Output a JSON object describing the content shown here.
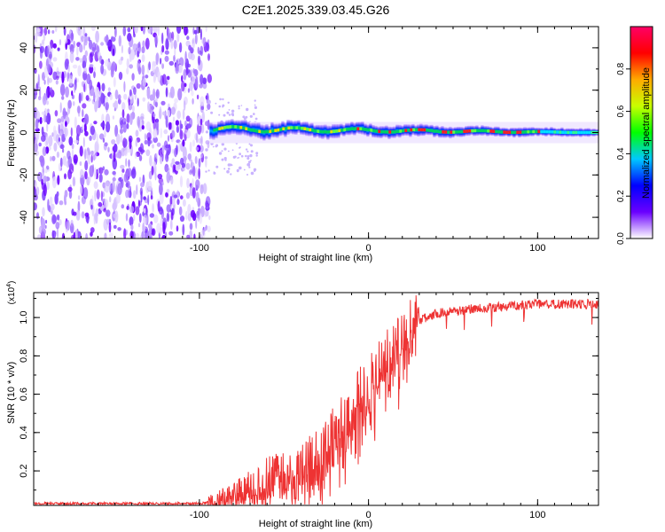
{
  "title": "C2E1.2025.339.03.45.G26",
  "chart_data": [
    {
      "type": "heatmap",
      "name": "spectrogram",
      "xlabel": "Height of straight line (km)",
      "ylabel": "Frequency (Hz)",
      "xlim": [
        -198,
        136
      ],
      "ylim": [
        -50,
        50
      ],
      "xticks": [
        -100,
        0,
        100
      ],
      "xtick_labels": [
        "-100",
        "0",
        "100"
      ],
      "yticks": [
        -40,
        -20,
        0,
        20,
        40
      ],
      "ytick_labels": [
        "-40",
        "-20",
        "0",
        "20",
        "40"
      ],
      "noise_region_x": [
        -198,
        -94
      ],
      "signal_line_hz": 0,
      "colorbar": {
        "label": "Normalized spectral amplitude",
        "range": [
          0,
          1
        ],
        "ticks": [
          0,
          0.2,
          0.4,
          0.6,
          0.8
        ],
        "tick_labels": [
          "0.0",
          "0.2",
          "0.4",
          "0.6",
          "0.8"
        ],
        "colors": [
          "#ffffff",
          "#6a00ff",
          "#0000ff",
          "#00c8ff",
          "#00ff00",
          "#c8ff00",
          "#ffaa00",
          "#ff0000",
          "#ff0066"
        ]
      }
    },
    {
      "type": "line",
      "name": "snr",
      "xlabel": "Height of straight line (km)",
      "ylabel": "SNR (10 * v/v)",
      "scale_base": "(x10",
      "scale_exp": "4",
      "scale_close": ")",
      "xlim": [
        -198,
        136
      ],
      "ylim": [
        0.02,
        1.13
      ],
      "xticks": [
        -100,
        0,
        100
      ],
      "xtick_labels": [
        "-100",
        "0",
        "100"
      ],
      "yticks": [
        0.2,
        0.4,
        0.6,
        0.8,
        1.0
      ],
      "ytick_labels": [
        "0.2",
        "0.4",
        "0.6",
        "0.8",
        "1.0"
      ],
      "color": "#ee3333",
      "x": [
        -198,
        -150,
        -100,
        -92,
        -85,
        -75,
        -68,
        -60,
        -55,
        -48,
        -40,
        -33,
        -28,
        -20,
        -14,
        -8,
        -3,
        3,
        10,
        18,
        25,
        32,
        40,
        55,
        70,
        85,
        100,
        115,
        136
      ],
      "y": [
        0.03,
        0.03,
        0.03,
        0.04,
        0.06,
        0.09,
        0.12,
        0.16,
        0.18,
        0.17,
        0.2,
        0.24,
        0.28,
        0.38,
        0.45,
        0.55,
        0.6,
        0.68,
        0.76,
        0.85,
        0.93,
        0.99,
        1.02,
        1.04,
        1.05,
        1.06,
        1.07,
        1.07,
        1.07
      ]
    }
  ]
}
